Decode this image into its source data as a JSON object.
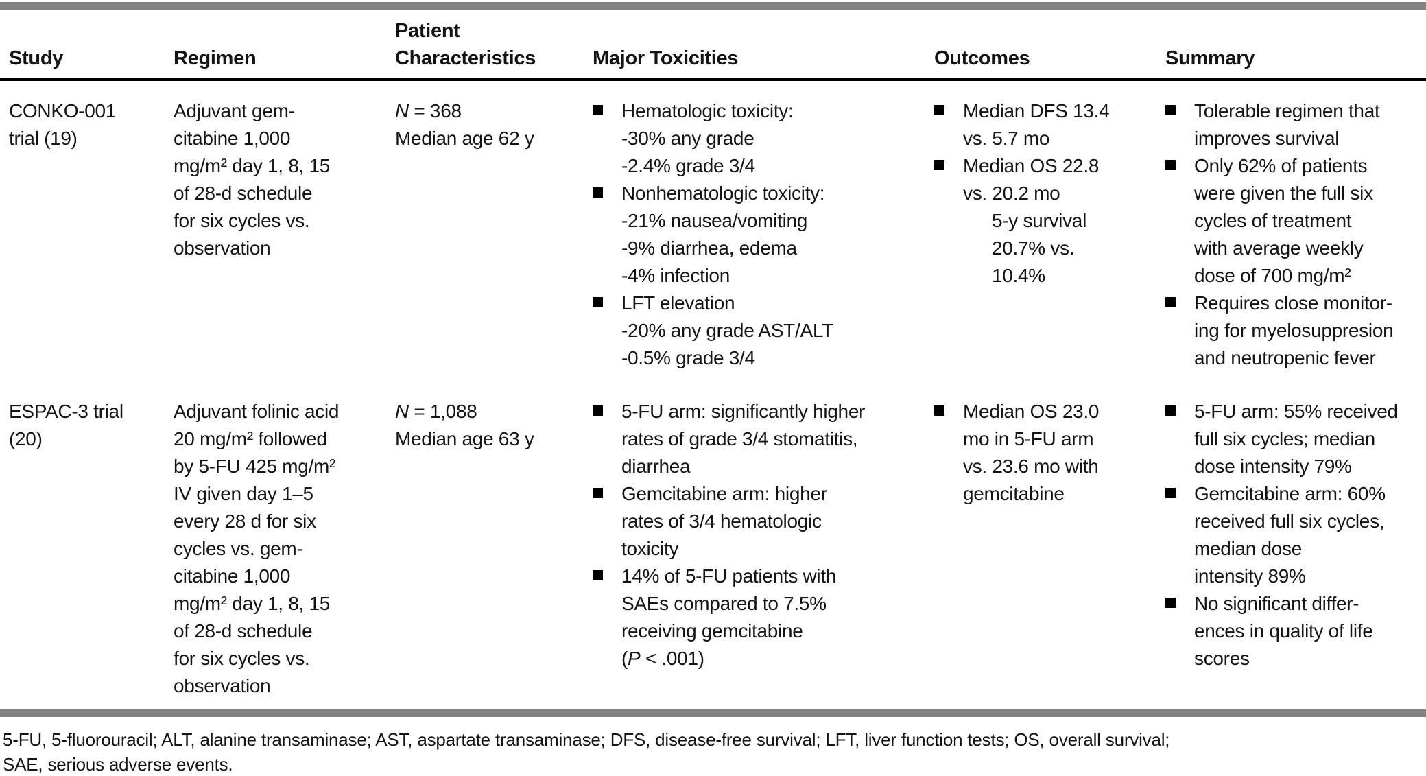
{
  "colors": {
    "rule_gray": "#828282",
    "text": "#141414",
    "header_rule_black": "#000000"
  },
  "table": {
    "columns": [
      "Study",
      "Regimen",
      "Patient\nCharacteristics",
      "Major Toxicities",
      "Outcomes",
      "Summary"
    ],
    "rows": [
      {
        "study": "CONKO-001\ntrial (19)",
        "regimen": "Adjuvant gem-\ncitabine 1,000\nmg/m² day 1, 8, 15\nof 28-d schedule\nfor six cycles vs.\nobservation",
        "patient_characteristics": [
          {
            "t": "N",
            "i": true
          },
          {
            "t": " = 368\nMedian age 62 y"
          }
        ],
        "major_toxicities": [
          {
            "runs": [
              {
                "t": "Hematologic toxicity:\n-30% any grade\n-2.4% grade 3/4"
              }
            ]
          },
          {
            "runs": [
              {
                "t": "Nonhematologic toxicity:\n-21% nausea/vomiting\n-9% diarrhea, edema\n-4% infection"
              }
            ]
          },
          {
            "runs": [
              {
                "t": "LFT elevation\n-20% any grade AST/ALT\n-0.5% grade 3/4"
              }
            ]
          }
        ],
        "outcomes": [
          {
            "runs": [
              {
                "t": "Median DFS 13.4\nvs. 5.7 mo"
              }
            ]
          },
          {
            "runs": [
              {
                "t": "Median OS 22.8\nvs. 20.2 mo"
              }
            ],
            "sub": "5-y survival\n20.7% vs.\n10.4%"
          }
        ],
        "summary": [
          {
            "runs": [
              {
                "t": "Tolerable regimen that\nimproves survival"
              }
            ]
          },
          {
            "runs": [
              {
                "t": "Only 62% of patients\nwere given the full six\ncycles of treatment\nwith average weekly\ndose of 700 mg/m²"
              }
            ]
          },
          {
            "runs": [
              {
                "t": "Requires close monitor-\ning for myelosuppresion\nand neutropenic fever"
              }
            ]
          }
        ]
      },
      {
        "study": "ESPAC-3 trial\n(20)",
        "regimen": "Adjuvant folinic acid\n20 mg/m² followed\nby 5-FU 425 mg/m²\nIV given day 1–5\nevery 28 d for six\ncycles vs. gem-\ncitabine 1,000\nmg/m² day 1, 8, 15\nof 28-d schedule\nfor six cycles vs.\nobservation",
        "patient_characteristics": [
          {
            "t": "N",
            "i": true
          },
          {
            "t": " = 1,088\nMedian age 63 y"
          }
        ],
        "major_toxicities": [
          {
            "runs": [
              {
                "t": "5-FU arm: significantly higher\nrates of grade 3/4 stomatitis,\ndiarrhea"
              }
            ]
          },
          {
            "runs": [
              {
                "t": "Gemcitabine arm: higher\nrates of 3/4 hematologic\ntoxicity"
              }
            ]
          },
          {
            "runs": [
              {
                "t": "14% of 5-FU patients with\nSAEs compared to 7.5%\nreceiving gemcitabine\n("
              },
              {
                "t": "P",
                "i": true
              },
              {
                "t": " < .001)"
              }
            ]
          }
        ],
        "outcomes": [
          {
            "runs": [
              {
                "t": "Median OS 23.0\nmo in 5-FU arm\nvs. 23.6 mo with\ngemcitabine"
              }
            ]
          }
        ],
        "summary": [
          {
            "runs": [
              {
                "t": "5-FU arm: 55% received\nfull six cycles; median\ndose intensity 79%"
              }
            ]
          },
          {
            "runs": [
              {
                "t": "Gemcitabine arm: 60%\nreceived full six cycles,\nmedian dose\nintensity 89%"
              }
            ]
          },
          {
            "runs": [
              {
                "t": "No significant differ-\nences in quality of life\nscores"
              }
            ]
          }
        ]
      }
    ]
  },
  "footnote": "5-FU, 5-fluorouracil; ALT, alanine transaminase; AST, aspartate transaminase; DFS, disease-free survival; LFT, liver function tests; OS, overall survival;\nSAE, serious adverse events."
}
